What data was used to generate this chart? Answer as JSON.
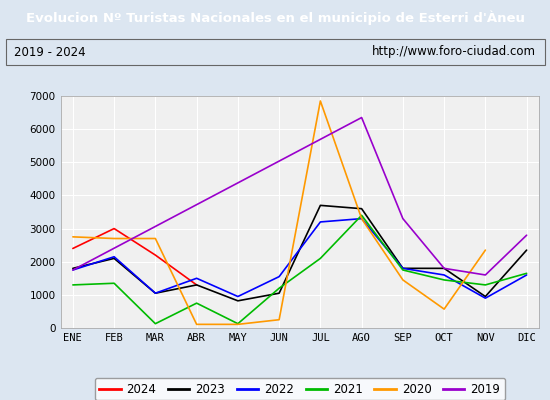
{
  "title": "Evolucion Nº Turistas Nacionales en el municipio de Esterri d'Àneu",
  "subtitle_left": "2019 - 2024",
  "subtitle_right": "http://www.foro-ciudad.com",
  "months": [
    "ENE",
    "FEB",
    "MAR",
    "ABR",
    "MAY",
    "JUN",
    "JUL",
    "AGO",
    "SEP",
    "OCT",
    "NOV",
    "DIC"
  ],
  "ylim": [
    0,
    7000
  ],
  "yticks": [
    0,
    1000,
    2000,
    3000,
    4000,
    5000,
    6000,
    7000
  ],
  "series": {
    "2024": {
      "color": "#ff0000",
      "values": [
        2400,
        3000,
        2200,
        1300,
        null,
        null,
        null,
        null,
        null,
        null,
        null,
        null
      ]
    },
    "2023": {
      "color": "#000000",
      "values": [
        1800,
        2100,
        1050,
        1300,
        820,
        1050,
        3700,
        3600,
        1800,
        1800,
        950,
        2350
      ]
    },
    "2022": {
      "color": "#0000ff",
      "values": [
        1750,
        2150,
        1050,
        1500,
        950,
        1550,
        3200,
        3300,
        1800,
        1600,
        900,
        1600
      ]
    },
    "2021": {
      "color": "#00bb00",
      "values": [
        1300,
        1350,
        130,
        750,
        130,
        1200,
        2100,
        3400,
        1750,
        1450,
        1300,
        1650
      ]
    },
    "2020": {
      "color": "#ff9900",
      "values": [
        2750,
        2700,
        2700,
        110,
        110,
        250,
        6850,
        3300,
        1450,
        570,
        2350,
        null
      ]
    },
    "2019": {
      "color": "#9900cc",
      "values": [
        1750,
        null,
        null,
        null,
        null,
        null,
        null,
        6350,
        3300,
        1800,
        1600,
        2800
      ]
    }
  },
  "title_bg_color": "#4472c4",
  "title_text_color": "#ffffff",
  "plot_bg_color": "#f0f0f0",
  "outer_bg_color": "#dce6f1",
  "grid_color": "#ffffff",
  "legend_order": [
    "2024",
    "2023",
    "2022",
    "2021",
    "2020",
    "2019"
  ]
}
